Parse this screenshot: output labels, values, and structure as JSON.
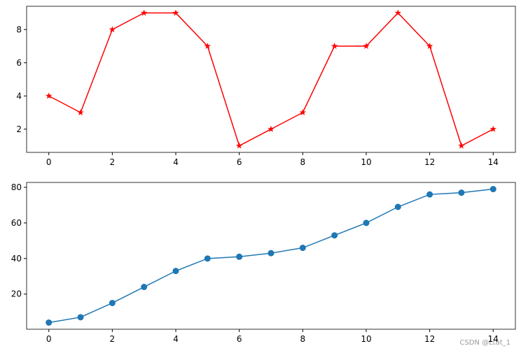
{
  "chart_data": [
    {
      "type": "line",
      "x": [
        0,
        1,
        2,
        3,
        4,
        5,
        6,
        7,
        8,
        9,
        10,
        11,
        12,
        13,
        14
      ],
      "series": [
        {
          "values": [
            4,
            3,
            8,
            9,
            9,
            7,
            1,
            2,
            3,
            7,
            7,
            9,
            7,
            1,
            2
          ],
          "color": "#ff0000",
          "marker": "star"
        }
      ],
      "xlim": [
        -0.7,
        14.7
      ],
      "xticks": [
        0,
        2,
        4,
        6,
        8,
        10,
        12,
        14
      ],
      "ylim": [
        0.6,
        9.4
      ],
      "yticks": [
        2,
        4,
        6,
        8
      ]
    },
    {
      "type": "line",
      "x": [
        0,
        1,
        2,
        3,
        4,
        5,
        6,
        7,
        8,
        9,
        10,
        11,
        12,
        13,
        14
      ],
      "series": [
        {
          "values": [
            4,
            7,
            15,
            24,
            33,
            40,
            41,
            43,
            46,
            53,
            60,
            69,
            76,
            77,
            79
          ],
          "color": "#1f77b4",
          "marker": "circle"
        }
      ],
      "xlim": [
        -0.7,
        14.7
      ],
      "xticks": [
        0,
        2,
        4,
        6,
        8,
        10,
        12,
        14
      ],
      "ylim": [
        0.25,
        82.75
      ],
      "yticks": [
        20,
        40,
        60,
        80
      ]
    }
  ],
  "watermark": "CSDN @Ltat_1"
}
